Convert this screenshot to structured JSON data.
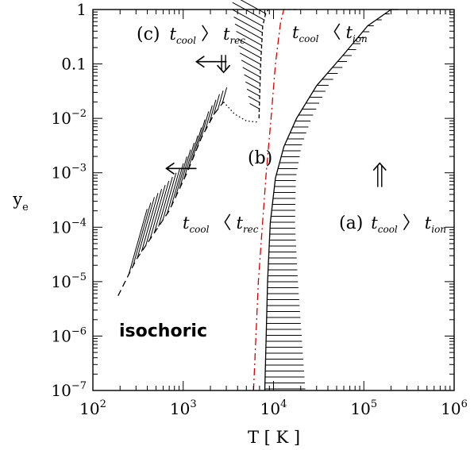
{
  "chart_data": {
    "type": "line",
    "title": "",
    "xlabel": "T [ K ]",
    "ylabel": "y",
    "ylabel_sub": "e",
    "xscale": "log",
    "yscale": "log",
    "xlim": [
      100,
      1000000
    ],
    "ylim": [
      1e-07,
      1
    ],
    "grid": false,
    "x_ticks": [
      {
        "value": 100,
        "base": "10",
        "exp": "2"
      },
      {
        "value": 1000,
        "base": "10",
        "exp": "3"
      },
      {
        "value": 10000,
        "base": "10",
        "exp": "4"
      },
      {
        "value": 100000,
        "base": "10",
        "exp": "5"
      },
      {
        "value": 1000000,
        "base": "10",
        "exp": "6"
      }
    ],
    "y_ticks": [
      {
        "value": 1e-07,
        "base": "10",
        "exp": "−7"
      },
      {
        "value": 1e-06,
        "base": "10",
        "exp": "−6"
      },
      {
        "value": 1e-05,
        "base": "10",
        "exp": "−5"
      },
      {
        "value": 0.0001,
        "base": "10",
        "exp": "−4"
      },
      {
        "value": 0.001,
        "base": "10",
        "exp": "−3"
      },
      {
        "value": 0.01,
        "base": "10",
        "exp": "−2"
      },
      {
        "value": 0.1,
        "text": "0.1"
      },
      {
        "value": 1,
        "text": "1"
      }
    ],
    "series": [
      {
        "style": "solid",
        "color": "#000000",
        "points": [
          [
            8000,
            1e-07
          ],
          [
            8600,
            1e-05
          ],
          [
            9200,
            0.00012
          ],
          [
            10500,
            0.0008
          ],
          [
            13000,
            0.003
          ],
          [
            18000,
            0.01
          ],
          [
            30000,
            0.04
          ],
          [
            60000,
            0.15
          ],
          [
            110000,
            0.5
          ],
          [
            200000,
            1
          ],
          [
            240000,
            1
          ]
        ]
      },
      {
        "style": "dash-dot",
        "color": "#d40000",
        "points": [
          [
            6000,
            1e-07
          ],
          [
            6800,
            1e-05
          ],
          [
            7500,
            0.0001
          ],
          [
            8300,
            0.001
          ],
          [
            9400,
            0.01
          ],
          [
            10500,
            0.1
          ],
          [
            12000,
            0.6
          ],
          [
            13000,
            1
          ],
          [
            18000,
            1
          ]
        ]
      },
      {
        "style": "dashed",
        "color": "#000000",
        "points": [
          [
            190,
            5.5e-06
          ],
          [
            300,
            2.5e-05
          ],
          [
            700,
            0.0002
          ],
          [
            1100,
            0.001
          ],
          [
            1600,
            0.0045
          ],
          [
            2200,
            0.012
          ],
          [
            2800,
            0.02
          ]
        ]
      },
      {
        "style": "dotted",
        "color": "#000000",
        "points": [
          [
            2800,
            0.02
          ],
          [
            3700,
            0.012
          ],
          [
            5000,
            0.009
          ],
          [
            6800,
            0.0085
          ]
        ]
      },
      {
        "style": "dashed-short",
        "color": "#000000",
        "points": [
          [
            6900,
            0.01
          ],
          [
            7200,
            0.1
          ],
          [
            7600,
            0.5
          ],
          [
            8200,
            0.85
          ],
          [
            8800,
            1
          ]
        ]
      }
    ],
    "hatched_regions": [
      {
        "boundary_series": 0,
        "orientation": "horizontal",
        "y_range": [
          1e-07,
          1
        ],
        "side": "right",
        "width_dex": [
          0.45,
          0.05
        ]
      },
      {
        "boundary_series": 2,
        "orientation": "diagonal",
        "x_range": [
          250,
          2700
        ],
        "side": "above",
        "height_dex": [
          1.2,
          0.3
        ]
      },
      {
        "boundary_series": 4,
        "orientation": "diagonal",
        "side": "left",
        "y_range": [
          0.015,
          1
        ]
      }
    ],
    "annotations": {
      "region_c": {
        "prefix": "(c)",
        "t1": "t",
        "t1_sub": "cool",
        "relation": "〉",
        "t2": "t",
        "t2_sub": "rec"
      },
      "top_right": {
        "t1": "t",
        "t1_sub": "cool",
        "relation": "〈",
        "t2": "t",
        "t2_sub": "ion"
      },
      "region_b": {
        "text": "(b)"
      },
      "middle_left": {
        "t1": "t",
        "t1_sub": "cool",
        "relation": "〈",
        "t2": "t",
        "t2_sub": "rec"
      },
      "region_a": {
        "prefix": "(a)",
        "t1": "t",
        "t1_sub": "cool",
        "relation": "〉",
        "t2": "t",
        "t2_sub": "ion"
      },
      "mode_label": "isochoric"
    },
    "arrows": [
      {
        "type": "single-left",
        "at": [
          1400,
          0.11
        ]
      },
      {
        "type": "single-left",
        "at": [
          650,
          0.0012
        ]
      },
      {
        "type": "double-down",
        "at": [
          2800,
          0.07
        ]
      },
      {
        "type": "double-up",
        "at": [
          150000,
          0.0015
        ]
      }
    ]
  }
}
